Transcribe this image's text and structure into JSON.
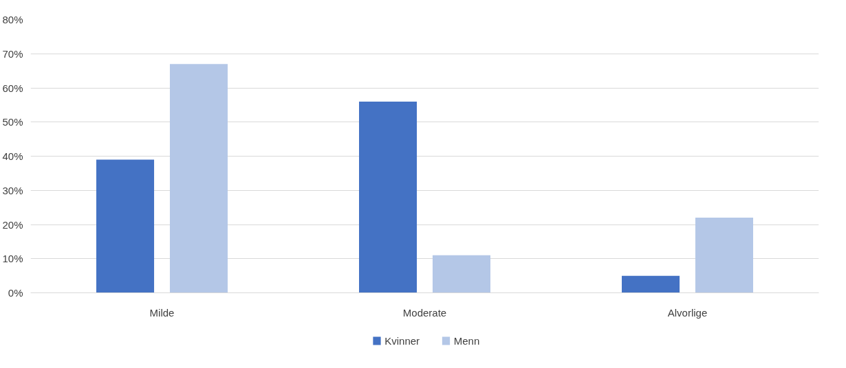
{
  "chart_data": {
    "type": "bar",
    "categories": [
      "Milde",
      "Moderate",
      "Alvorlige"
    ],
    "series": [
      {
        "name": "Kvinner",
        "color": "#4472c4",
        "values": [
          39,
          56,
          5
        ]
      },
      {
        "name": "Menn",
        "color": "#b4c7e7",
        "values": [
          67,
          11,
          22
        ]
      }
    ],
    "ylim": [
      0,
      80
    ],
    "yticks": [
      {
        "value": 0,
        "label": "0%"
      },
      {
        "value": 10,
        "label": "10%"
      },
      {
        "value": 20,
        "label": "20%"
      },
      {
        "value": 30,
        "label": "30%"
      },
      {
        "value": 40,
        "label": "40%"
      },
      {
        "value": 50,
        "label": "50%"
      },
      {
        "value": 60,
        "label": "60%"
      },
      {
        "value": 70,
        "label": "70%"
      },
      {
        "value": 80,
        "label": "80%"
      }
    ],
    "grid": "y",
    "legend": "bottom"
  }
}
